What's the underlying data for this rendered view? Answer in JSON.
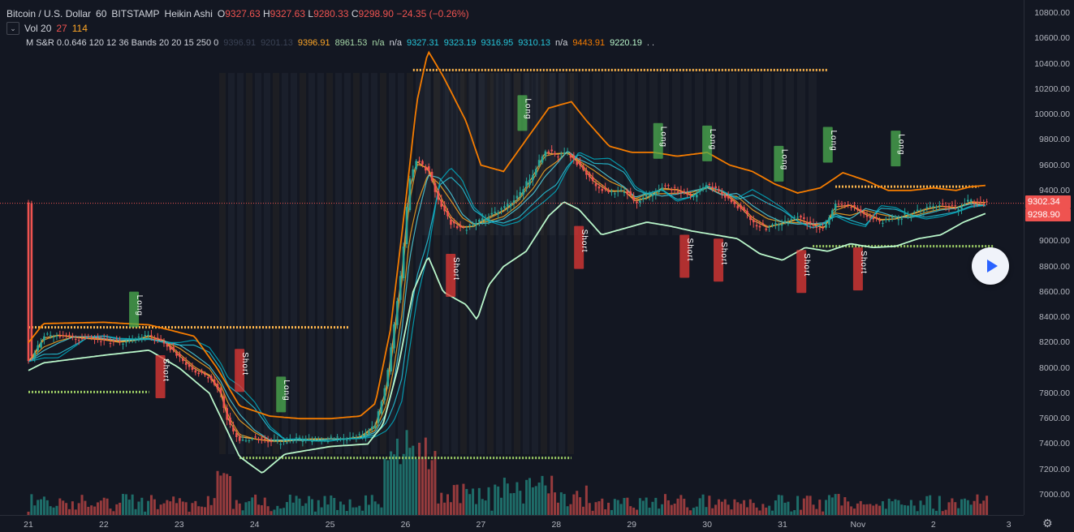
{
  "header": {
    "symbol": "Bitcoin / U.S. Dollar",
    "interval": "60",
    "exchange": "BITSTAMP",
    "chart_style": "Heikin Ashi",
    "open_label": "O",
    "open": "9327.63",
    "high_label": "H",
    "high": "9327.63",
    "low_label": "L",
    "low": "9280.33",
    "close_label": "C",
    "close": "9298.90",
    "change": "−24.35 (−0.26%)"
  },
  "volume_legend": {
    "label": "Vol 20",
    "v1": "27",
    "v2": "114"
  },
  "indicator_legend": {
    "name": "M S&R 0.0.646 120 12 36 Bands 20 20 15 250 0",
    "values": [
      {
        "text": "9396.91",
        "color": "#3a4254"
      },
      {
        "text": "9201.13",
        "color": "#3a4254"
      },
      {
        "text": "9396.91",
        "color": "#ffa726"
      },
      {
        "text": "8961.53",
        "color": "#a5d6a7"
      },
      {
        "text": "n/a",
        "color": "#a5d6a7"
      },
      {
        "text": "n/a",
        "color": "#d1d4dc"
      },
      {
        "text": "9327.31",
        "color": "#26c6da"
      },
      {
        "text": "9323.19",
        "color": "#26c6da"
      },
      {
        "text": "9316.95",
        "color": "#26c6da"
      },
      {
        "text": "9310.13",
        "color": "#26c6da"
      },
      {
        "text": "n/a",
        "color": "#d1d4dc"
      },
      {
        "text": "9443.91",
        "color": "#f57c00"
      },
      {
        "text": "9220.19",
        "color": "#b9f6ca"
      },
      {
        "text": ". .",
        "color": "#d1d4dc"
      }
    ]
  },
  "price_axis": {
    "ticks": [
      "10800.00",
      "10600.00",
      "10400.00",
      "10200.00",
      "10000.00",
      "9800.00",
      "9600.00",
      "9400.00",
      "9200.00",
      "9000.00",
      "8800.00",
      "8600.00",
      "8400.00",
      "8200.00",
      "8000.00",
      "7800.00",
      "7600.00",
      "7400.00",
      "7200.00",
      "7000.00"
    ],
    "tags": [
      {
        "text": "9302.34",
        "color": "#ef5350"
      },
      {
        "text": "9298.90",
        "color": "#ef5350"
      }
    ]
  },
  "time_axis": {
    "ticks": [
      "21",
      "22",
      "23",
      "24",
      "25",
      "26",
      "27",
      "28",
      "29",
      "30",
      "31",
      "Nov",
      "2",
      "3"
    ]
  },
  "signals": [
    {
      "text": "Long",
      "type": "long"
    },
    {
      "text": "Short",
      "type": "short"
    },
    {
      "text": "Short",
      "type": "short"
    },
    {
      "text": "Long",
      "type": "long"
    },
    {
      "text": "Short",
      "type": "short"
    },
    {
      "text": "Long",
      "type": "long"
    },
    {
      "text": "Short",
      "type": "short"
    },
    {
      "text": "Long",
      "type": "long"
    },
    {
      "text": "Short",
      "type": "short"
    },
    {
      "text": "Long",
      "type": "long"
    },
    {
      "text": "Short",
      "type": "short"
    },
    {
      "text": "Long",
      "type": "long"
    },
    {
      "text": "Short",
      "type": "short"
    },
    {
      "text": "Long",
      "type": "long"
    },
    {
      "text": "Short",
      "type": "short"
    },
    {
      "text": "Long",
      "type": "long"
    }
  ],
  "colors": {
    "background": "#131722",
    "up": "#26a69a",
    "down": "#ef5350",
    "long_label": "#4caf50",
    "short_label": "#e53935",
    "upper_band": "#f57c00",
    "lower_band": "#b9f6ca",
    "ribbon": "#26c6da",
    "level_orange": "#ffb74d",
    "level_green": "#9ccc65"
  },
  "chart_data": {
    "type": "candlestick",
    "chart_style": "Heikin Ashi",
    "x_unit": "days",
    "x_ticks": [
      "21",
      "22",
      "23",
      "24",
      "25",
      "26",
      "27",
      "28",
      "29",
      "30",
      "31",
      "Nov",
      "2",
      "3"
    ],
    "ylim": [
      6900,
      10900
    ],
    "close_series": [
      [
        21.0,
        8050
      ],
      [
        21.1,
        8150
      ],
      [
        21.2,
        8250
      ],
      [
        21.4,
        8260
      ],
      [
        21.6,
        8240
      ],
      [
        21.8,
        8230
      ],
      [
        22.0,
        8220
      ],
      [
        22.2,
        8200
      ],
      [
        22.4,
        8220
      ],
      [
        22.6,
        8260
      ],
      [
        22.8,
        8200
      ],
      [
        23.0,
        8080
      ],
      [
        23.2,
        7980
      ],
      [
        23.4,
        7930
      ],
      [
        23.55,
        7780
      ],
      [
        23.65,
        7560
      ],
      [
        23.8,
        7440
      ],
      [
        24.0,
        7440
      ],
      [
        24.2,
        7420
      ],
      [
        24.4,
        7420
      ],
      [
        24.6,
        7440
      ],
      [
        24.8,
        7440
      ],
      [
        25.0,
        7440
      ],
      [
        25.2,
        7440
      ],
      [
        25.4,
        7460
      ],
      [
        25.6,
        7560
      ],
      [
        25.75,
        7900
      ],
      [
        25.85,
        8350
      ],
      [
        25.95,
        8800
      ],
      [
        26.05,
        9500
      ],
      [
        26.15,
        9650
      ],
      [
        26.3,
        9550
      ],
      [
        26.45,
        9300
      ],
      [
        26.6,
        9150
      ],
      [
        26.75,
        9100
      ],
      [
        26.9,
        9120
      ],
      [
        27.1,
        9200
      ],
      [
        27.3,
        9250
      ],
      [
        27.5,
        9350
      ],
      [
        27.7,
        9550
      ],
      [
        27.85,
        9720
      ],
      [
        28.0,
        9680
      ],
      [
        28.15,
        9700
      ],
      [
        28.3,
        9600
      ],
      [
        28.5,
        9450
      ],
      [
        28.7,
        9380
      ],
      [
        28.9,
        9400
      ],
      [
        29.05,
        9300
      ],
      [
        29.2,
        9350
      ],
      [
        29.4,
        9430
      ],
      [
        29.6,
        9400
      ],
      [
        29.8,
        9350
      ],
      [
        30.0,
        9450
      ],
      [
        30.2,
        9380
      ],
      [
        30.4,
        9280
      ],
      [
        30.6,
        9150
      ],
      [
        30.8,
        9100
      ],
      [
        31.0,
        9150
      ],
      [
        31.2,
        9180
      ],
      [
        31.4,
        9120
      ],
      [
        31.55,
        9100
      ],
      [
        31.7,
        9300
      ],
      [
        31.9,
        9280
      ],
      [
        32.1,
        9200
      ],
      [
        32.3,
        9160
      ],
      [
        32.5,
        9180
      ],
      [
        32.7,
        9220
      ],
      [
        32.9,
        9260
      ],
      [
        33.1,
        9280
      ],
      [
        33.3,
        9260
      ],
      [
        33.5,
        9320
      ],
      [
        33.7,
        9300
      ]
    ],
    "upper_band": [
      [
        21.0,
        8200
      ],
      [
        21.2,
        8350
      ],
      [
        22.0,
        8360
      ],
      [
        22.6,
        8340
      ],
      [
        23.2,
        8250
      ],
      [
        23.5,
        8000
      ],
      [
        23.8,
        7700
      ],
      [
        24.2,
        7620
      ],
      [
        24.6,
        7600
      ],
      [
        25.0,
        7600
      ],
      [
        25.4,
        7620
      ],
      [
        25.6,
        7720
      ],
      [
        25.8,
        8300
      ],
      [
        26.0,
        9300
      ],
      [
        26.15,
        10100
      ],
      [
        26.3,
        10500
      ],
      [
        26.5,
        10300
      ],
      [
        26.8,
        9950
      ],
      [
        27.0,
        9600
      ],
      [
        27.3,
        9550
      ],
      [
        27.6,
        9800
      ],
      [
        27.9,
        10050
      ],
      [
        28.2,
        10100
      ],
      [
        28.4,
        9950
      ],
      [
        28.7,
        9750
      ],
      [
        29.0,
        9700
      ],
      [
        29.3,
        9700
      ],
      [
        29.6,
        9670
      ],
      [
        30.0,
        9700
      ],
      [
        30.3,
        9600
      ],
      [
        30.6,
        9550
      ],
      [
        30.9,
        9450
      ],
      [
        31.2,
        9380
      ],
      [
        31.5,
        9420
      ],
      [
        31.8,
        9540
      ],
      [
        32.1,
        9480
      ],
      [
        32.4,
        9400
      ],
      [
        32.7,
        9400
      ],
      [
        33.0,
        9420
      ],
      [
        33.3,
        9400
      ],
      [
        33.5,
        9430
      ],
      [
        33.7,
        9440
      ]
    ],
    "lower_band": [
      [
        21.0,
        7980
      ],
      [
        21.2,
        8040
      ],
      [
        22.0,
        8100
      ],
      [
        22.6,
        8140
      ],
      [
        23.0,
        8000
      ],
      [
        23.4,
        7800
      ],
      [
        23.8,
        7300
      ],
      [
        24.1,
        7170
      ],
      [
        24.4,
        7320
      ],
      [
        25.0,
        7380
      ],
      [
        25.5,
        7400
      ],
      [
        25.7,
        7550
      ],
      [
        25.9,
        8000
      ],
      [
        26.1,
        8600
      ],
      [
        26.3,
        8880
      ],
      [
        26.5,
        8600
      ],
      [
        26.8,
        8500
      ],
      [
        26.95,
        8380
      ],
      [
        27.1,
        8650
      ],
      [
        27.3,
        8800
      ],
      [
        27.6,
        8920
      ],
      [
        27.9,
        9200
      ],
      [
        28.1,
        9310
      ],
      [
        28.3,
        9250
      ],
      [
        28.6,
        9050
      ],
      [
        28.9,
        9100
      ],
      [
        29.2,
        9150
      ],
      [
        29.5,
        9120
      ],
      [
        29.8,
        9080
      ],
      [
        30.1,
        9050
      ],
      [
        30.4,
        9020
      ],
      [
        30.7,
        8900
      ],
      [
        31.0,
        8850
      ],
      [
        31.3,
        8950
      ],
      [
        31.6,
        8920
      ],
      [
        31.9,
        8980
      ],
      [
        32.2,
        8950
      ],
      [
        32.5,
        8960
      ],
      [
        32.8,
        9020
      ],
      [
        33.1,
        9050
      ],
      [
        33.4,
        9150
      ],
      [
        33.7,
        9220
      ]
    ],
    "support_resistance_levels": [
      {
        "price": 8320,
        "from": 21.0,
        "to": 25.25,
        "kind": "resistance"
      },
      {
        "price": 7810,
        "from": 21.0,
        "to": 22.6,
        "kind": "support"
      },
      {
        "price": 7290,
        "from": 23.8,
        "to": 28.2,
        "kind": "support"
      },
      {
        "price": 10350,
        "from": 26.1,
        "to": 31.6,
        "kind": "resistance"
      },
      {
        "price": 9430,
        "from": 31.7,
        "to": 33.6,
        "kind": "resistance"
      },
      {
        "price": 8960,
        "from": 31.4,
        "to": 33.8,
        "kind": "support"
      }
    ],
    "current_price": 9298.9
  }
}
